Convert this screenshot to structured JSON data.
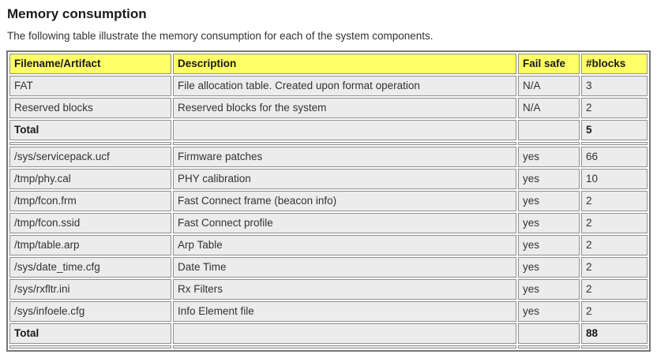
{
  "page": {
    "title": "Memory consumption",
    "intro": "The following table illustrate the memory consumption for each of the system components."
  },
  "table": {
    "headers": [
      "Filename/Artifact",
      "Description",
      "Fail safe",
      "#blocks"
    ],
    "sections": [
      {
        "rows": [
          {
            "cells": [
              "FAT",
              "File allocation table. Created upon format operation",
              "N/A",
              "3"
            ],
            "total": false
          },
          {
            "cells": [
              "Reserved blocks",
              "Reserved blocks for the system",
              "N/A",
              "2"
            ],
            "total": false
          },
          {
            "cells": [
              "Total",
              "",
              "",
              "5"
            ],
            "total": true
          }
        ]
      },
      {
        "rows": [
          {
            "cells": [
              "/sys/servicepack.ucf",
              "Firmware patches",
              "yes",
              "66"
            ],
            "total": false
          },
          {
            "cells": [
              "/tmp/phy.cal",
              "PHY calibration",
              "yes",
              "10"
            ],
            "total": false
          },
          {
            "cells": [
              "/tmp/fcon.frm",
              "Fast Connect frame (beacon info)",
              "yes",
              "2"
            ],
            "total": false
          },
          {
            "cells": [
              "/tmp/fcon.ssid",
              "Fast Connect profile",
              "yes",
              "2"
            ],
            "total": false
          },
          {
            "cells": [
              "/tmp/table.arp",
              "Arp Table",
              "yes",
              "2"
            ],
            "total": false
          },
          {
            "cells": [
              "/sys/date_time.cfg",
              "Date Time",
              "yes",
              "2"
            ],
            "total": false
          },
          {
            "cells": [
              "/sys/rxfltr.ini",
              "Rx Filters",
              "yes",
              "2"
            ],
            "total": false
          },
          {
            "cells": [
              "/sys/infoele.cfg",
              "Info Element file",
              "yes",
              "2"
            ],
            "total": false
          },
          {
            "cells": [
              "Total",
              "",
              "",
              "88"
            ],
            "total": true
          }
        ]
      }
    ],
    "colors": {
      "header_bg": "#ffff66",
      "row_bg": "#ececec",
      "outer_border": "#767676",
      "cell_border": "#8f8f8f"
    }
  }
}
